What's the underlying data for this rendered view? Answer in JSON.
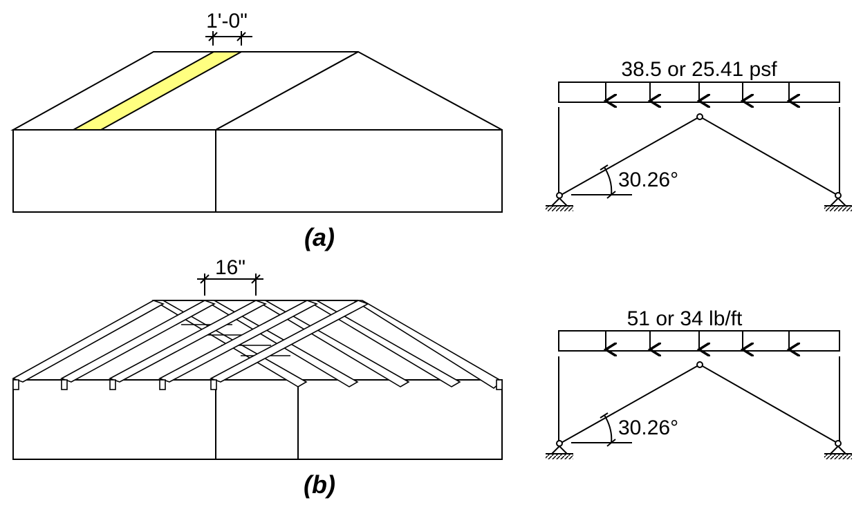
{
  "panel_a": {
    "strip_width_label": "1'-0\"",
    "load_label": "38.5 or 25.41 psf",
    "angle_label": "30.26°",
    "caption": "(a)",
    "strip_color": "#FFFF80"
  },
  "panel_b": {
    "spacing_label": "16\"",
    "load_label": "51 or 34 lb/ft",
    "angle_label": "30.26°",
    "caption": "(b)"
  }
}
